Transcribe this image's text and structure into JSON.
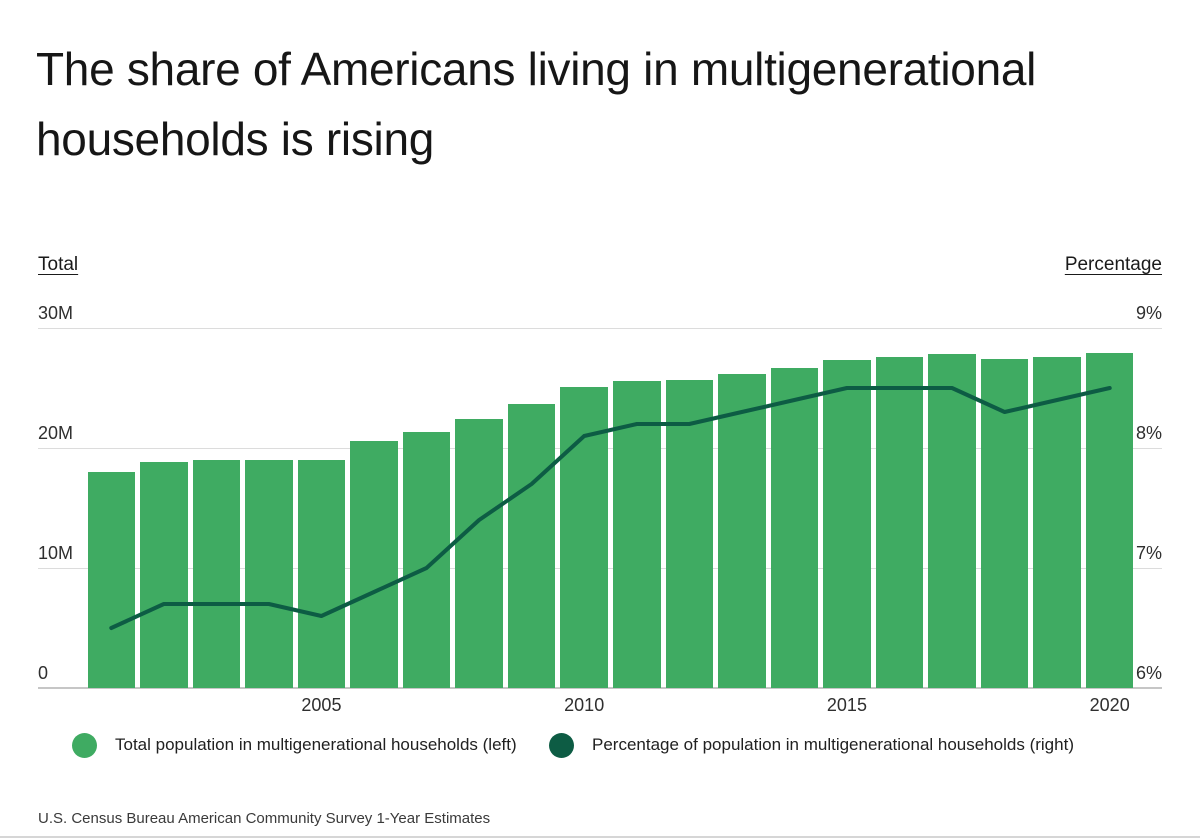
{
  "title": {
    "lines": [
      "The share of Americans living in multigenerational",
      "households is rising"
    ]
  },
  "axis_headers": {
    "left": "Total",
    "right": "Percentage"
  },
  "source": "U.S. Census Bureau American Community Survey 1-Year Estimates",
  "colors": {
    "bar": "#3FAB62",
    "line": "#0D5C44",
    "grid": "#DCDCDC",
    "axis": "#C6C6C6"
  },
  "chart_data": {
    "type": "bar",
    "subtype": "bar-with-line-overlay",
    "x": [
      2001,
      2002,
      2003,
      2004,
      2005,
      2006,
      2007,
      2008,
      2009,
      2010,
      2011,
      2012,
      2013,
      2014,
      2015,
      2016,
      2017,
      2018,
      2019,
      2020
    ],
    "series": [
      {
        "name": "Total population in multigenerational households (left)",
        "kind": "bar",
        "axis": "left",
        "unit": "M",
        "values": [
          18.0,
          18.8,
          19.0,
          19.0,
          19.0,
          20.6,
          21.3,
          22.4,
          23.7,
          25.1,
          25.6,
          25.7,
          26.2,
          26.7,
          27.3,
          27.6,
          27.8,
          27.4,
          27.6,
          27.9
        ]
      },
      {
        "name": "Percentage of population in multigenerational households (right)",
        "kind": "line",
        "axis": "right",
        "unit": "%",
        "values": [
          6.5,
          6.7,
          6.7,
          6.7,
          6.6,
          6.8,
          7.0,
          7.4,
          7.7,
          8.1,
          8.2,
          8.2,
          8.3,
          8.4,
          8.5,
          8.5,
          8.5,
          8.3,
          8.4,
          8.5
        ]
      }
    ],
    "left_axis": {
      "label": "Total",
      "ticks": [
        "30M",
        "20M",
        "10M",
        "0"
      ],
      "range": [
        0,
        30
      ]
    },
    "right_axis": {
      "label": "Percentage",
      "ticks": [
        "9%",
        "8%",
        "7%",
        "6%"
      ],
      "range": [
        6,
        9
      ]
    },
    "x_ticks": [
      2005,
      2010,
      2015,
      2020
    ],
    "grid": true,
    "legend_position": "bottom"
  }
}
